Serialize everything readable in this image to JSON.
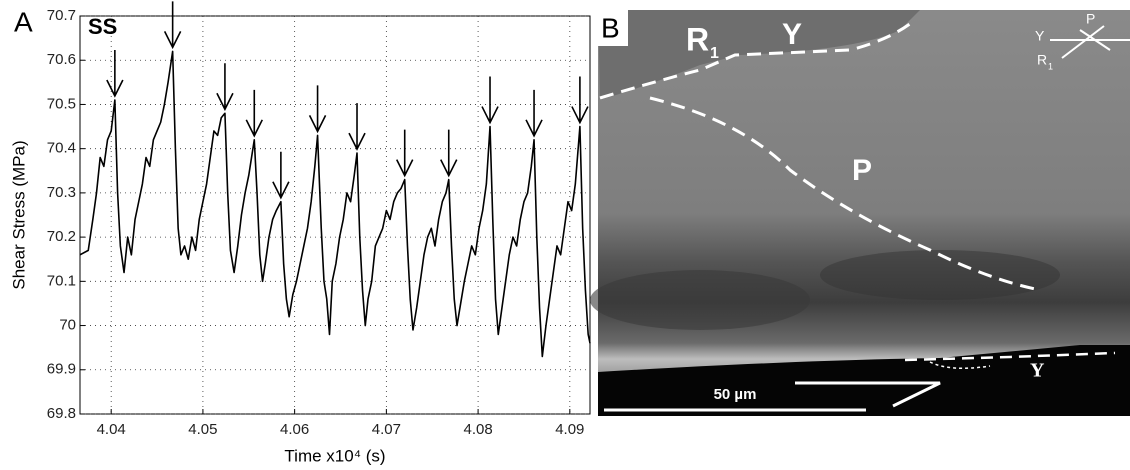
{
  "chart_data": {
    "type": "line",
    "panel_label": "A",
    "annotation": "SS",
    "x_label": "Time x10⁴ (s)",
    "y_label": "Shear Stress (MPa)",
    "xlim": [
      4.0366,
      4.0922
    ],
    "xticks": [
      4.04,
      4.05,
      4.06,
      4.07,
      4.08,
      4.09
    ],
    "ylim": [
      69.8,
      70.7
    ],
    "yticks": [
      69.8,
      69.9,
      70,
      70.1,
      70.2,
      70.3,
      70.4,
      70.5,
      70.6,
      70.7
    ],
    "grid": true,
    "x": [
      4.0366,
      4.0375,
      4.038,
      4.0384,
      4.0388,
      4.0392,
      4.0396,
      4.04,
      4.0404,
      4.0407,
      4.041,
      4.0414,
      4.0418,
      4.0422,
      4.0426,
      4.043,
      4.0434,
      4.0438,
      4.0442,
      4.0446,
      4.045,
      4.0454,
      4.0458,
      4.0462,
      4.0467,
      4.047,
      4.0473,
      4.0476,
      4.048,
      4.0484,
      4.0488,
      4.0492,
      4.0496,
      4.05,
      4.0504,
      4.0508,
      4.0512,
      4.0516,
      4.052,
      4.0524,
      4.0527,
      4.053,
      4.0534,
      4.0538,
      4.0542,
      4.0546,
      4.055,
      4.0553,
      4.0556,
      4.0559,
      4.0562,
      4.0565,
      4.0568,
      4.0572,
      4.0576,
      4.058,
      4.0585,
      4.0588,
      4.0591,
      4.0594,
      4.0598,
      4.0602,
      4.0606,
      4.061,
      4.0614,
      4.0618,
      4.0622,
      4.0625,
      4.0629,
      4.0632,
      4.0635,
      4.0638,
      4.0641,
      4.0645,
      4.0649,
      4.0653,
      4.0657,
      4.0661,
      4.0665,
      4.0668,
      4.0671,
      4.0674,
      4.0677,
      4.068,
      4.0684,
      4.0688,
      4.0692,
      4.0696,
      4.07,
      4.0704,
      4.0708,
      4.0712,
      4.0716,
      4.072,
      4.0723,
      4.0726,
      4.0729,
      4.0733,
      4.0737,
      4.0741,
      4.0745,
      4.0749,
      4.0753,
      4.0757,
      4.0761,
      4.0765,
      4.0768,
      4.0771,
      4.0774,
      4.0777,
      4.0781,
      4.0785,
      4.0789,
      4.0793,
      4.0797,
      4.0801,
      4.0805,
      4.0809,
      4.0813,
      4.0816,
      4.0819,
      4.0822,
      4.0826,
      4.083,
      4.0834,
      4.0838,
      4.0842,
      4.0846,
      4.085,
      4.0854,
      4.0858,
      4.0861,
      4.0864,
      4.0867,
      4.087,
      4.0874,
      4.0878,
      4.0882,
      4.0886,
      4.089,
      4.0894,
      4.0898,
      4.0902,
      4.0906,
      4.0911,
      4.0914,
      4.0917,
      4.092,
      4.0922
    ],
    "series": [
      {
        "color": "#000000",
        "values": [
          70.16,
          70.17,
          70.24,
          70.3,
          70.38,
          70.36,
          70.42,
          70.44,
          70.51,
          70.3,
          70.18,
          70.12,
          70.2,
          70.16,
          70.24,
          70.28,
          70.32,
          70.38,
          70.36,
          70.42,
          70.44,
          70.46,
          70.5,
          70.55,
          70.62,
          70.4,
          70.22,
          70.16,
          70.18,
          70.15,
          70.2,
          70.17,
          70.24,
          70.28,
          70.32,
          70.38,
          70.44,
          70.43,
          70.47,
          70.48,
          70.3,
          70.17,
          70.12,
          70.18,
          70.25,
          70.3,
          70.34,
          70.38,
          70.42,
          70.3,
          70.16,
          70.1,
          70.14,
          70.2,
          70.24,
          70.26,
          70.28,
          70.14,
          70.06,
          70.02,
          70.07,
          70.1,
          70.14,
          70.18,
          70.22,
          70.28,
          70.36,
          70.43,
          70.22,
          70.1,
          70.06,
          69.98,
          70.1,
          70.14,
          70.2,
          70.24,
          70.3,
          70.28,
          70.34,
          70.39,
          70.2,
          70.08,
          70.0,
          70.06,
          70.1,
          70.18,
          70.2,
          70.22,
          70.26,
          70.24,
          70.28,
          70.3,
          70.31,
          70.33,
          70.18,
          70.06,
          69.99,
          70.04,
          70.1,
          70.16,
          70.2,
          70.22,
          70.18,
          70.24,
          70.28,
          70.3,
          70.33,
          70.18,
          70.06,
          70.0,
          70.05,
          70.1,
          70.14,
          70.18,
          70.16,
          70.22,
          70.26,
          70.32,
          70.45,
          70.24,
          70.06,
          69.98,
          70.04,
          70.1,
          70.16,
          70.2,
          70.18,
          70.24,
          70.28,
          70.3,
          70.36,
          70.42,
          70.2,
          70.04,
          69.93,
          70.0,
          70.06,
          70.12,
          70.18,
          70.16,
          70.22,
          70.28,
          70.26,
          70.32,
          70.45,
          70.22,
          70.08,
          69.98,
          69.96
        ]
      }
    ],
    "arrows": [
      {
        "x": 4.0404,
        "y": 70.51
      },
      {
        "x": 4.0467,
        "y": 70.62
      },
      {
        "x": 4.0524,
        "y": 70.48
      },
      {
        "x": 4.0556,
        "y": 70.42
      },
      {
        "x": 4.0585,
        "y": 70.28
      },
      {
        "x": 4.0625,
        "y": 70.43
      },
      {
        "x": 4.0668,
        "y": 70.39
      },
      {
        "x": 4.072,
        "y": 70.33
      },
      {
        "x": 4.0768,
        "y": 70.33
      },
      {
        "x": 4.0813,
        "y": 70.45
      },
      {
        "x": 4.0861,
        "y": 70.42
      },
      {
        "x": 4.0911,
        "y": 70.45
      }
    ]
  },
  "micrograph": {
    "panel_label": "B",
    "labels": [
      {
        "text": "R",
        "sub": "1"
      },
      {
        "text": "Y"
      },
      {
        "text": "P"
      },
      {
        "text": "Y"
      }
    ],
    "inset": {
      "p": "P",
      "y": "Y",
      "r": "R",
      "r_sub": "1"
    },
    "scale_bar": "50 µm"
  }
}
